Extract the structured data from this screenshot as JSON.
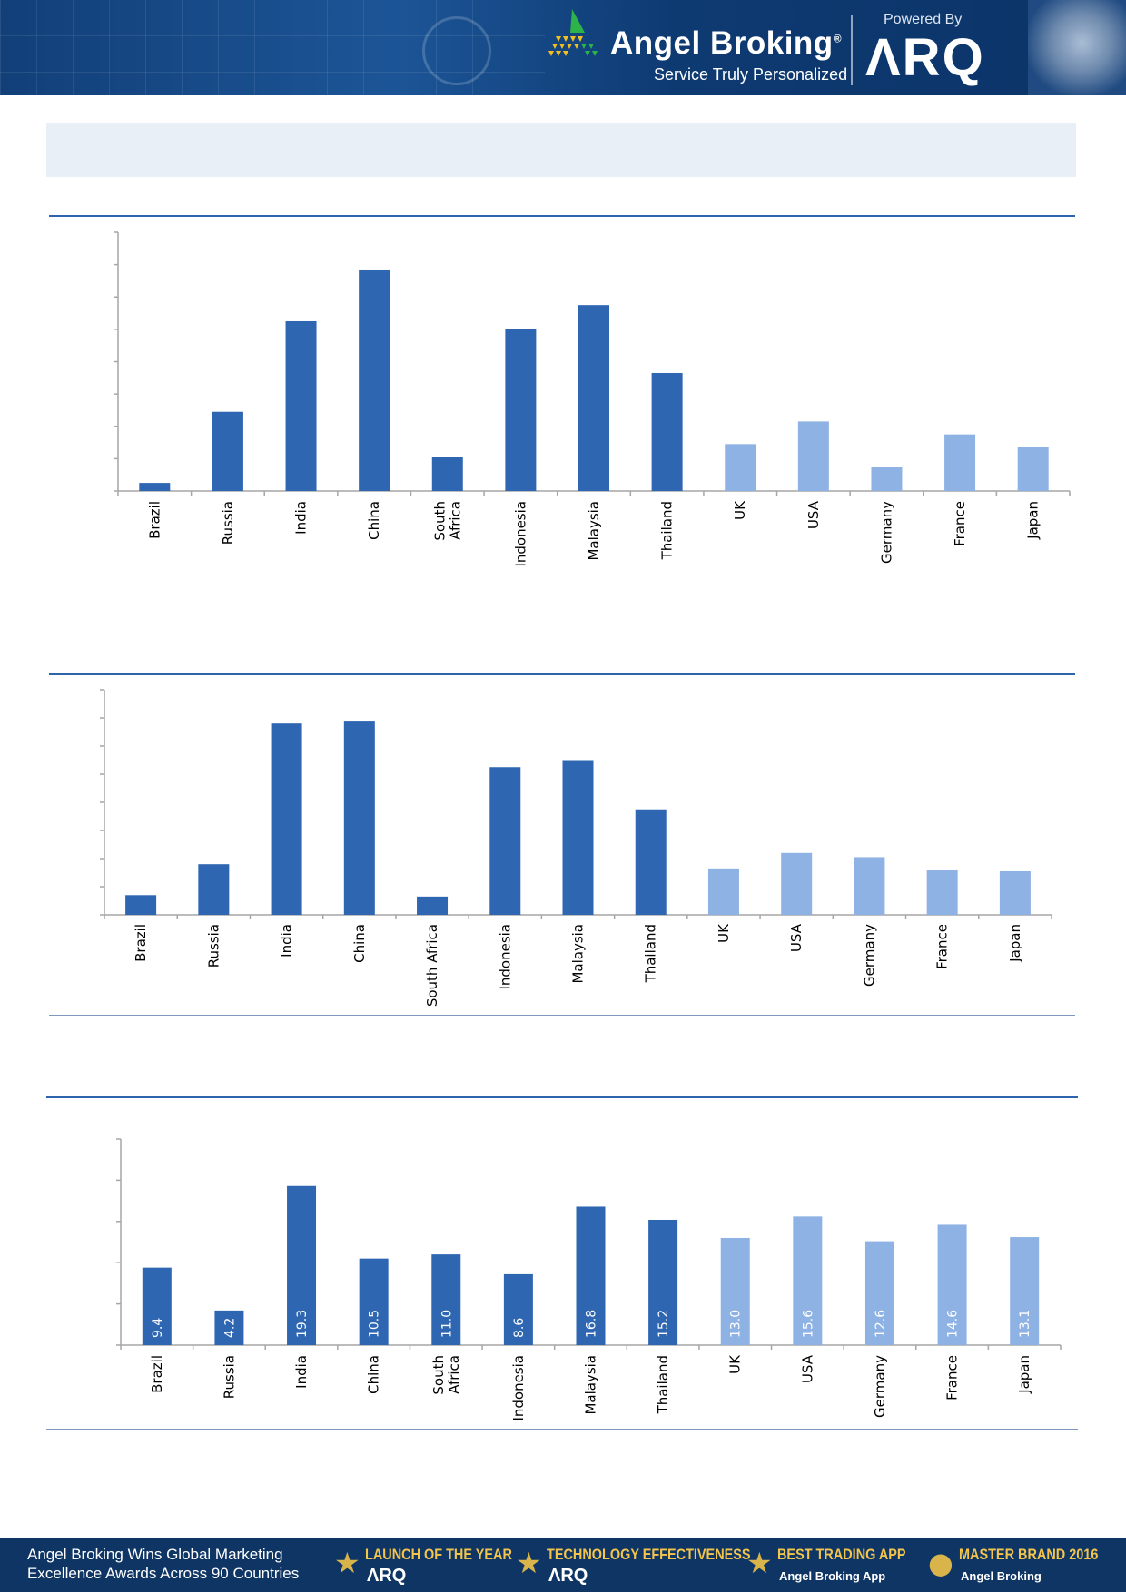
{
  "header": {
    "brand_name": "Angel Broking",
    "registered_mark": "®",
    "tagline": "Service Truly Personalized",
    "powered_by": "Powered By",
    "arq_logo": "ΛRQ"
  },
  "footer": {
    "text_line1": "Angel Broking Wins Global Marketing",
    "text_line2": "Excellence Awards Across 90 Countries",
    "awards": [
      {
        "title": "LAUNCH OF THE YEAR",
        "subtitle": "ΛRQ"
      },
      {
        "title": "TECHNOLOGY EFFECTIVENESS",
        "subtitle": "ΛRQ"
      },
      {
        "title": "BEST TRADING APP",
        "subtitle": "Angel Broking App"
      },
      {
        "title": "MASTER BRAND 2016",
        "subtitle": "Angel Broking"
      }
    ]
  },
  "colors": {
    "emerging_bar": "#2e66b2",
    "developed_bar": "#8db2e3",
    "header_bg": "#123f78",
    "footer_bg": "#0e3564",
    "section_rule": "#2e64ae"
  },
  "chart_data": [
    {
      "type": "bar",
      "title": "",
      "categories": [
        "Brazil",
        "Russia",
        "India",
        "China",
        "South Africa",
        "Indonesia",
        "Malaysia",
        "Thailand",
        "UK",
        "USA",
        "Germany",
        "France",
        "Japan"
      ],
      "values": [
        0.5,
        4.9,
        10.5,
        13.7,
        2.1,
        10.0,
        11.5,
        7.3,
        2.9,
        4.3,
        1.5,
        3.5,
        2.7
      ],
      "ylim": [
        0,
        16
      ],
      "grid": false,
      "legend": "none",
      "bar_groups": [
        "emerging",
        "emerging",
        "emerging",
        "emerging",
        "emerging",
        "emerging",
        "emerging",
        "emerging",
        "developed",
        "developed",
        "developed",
        "developed",
        "developed"
      ]
    },
    {
      "type": "bar",
      "title": "",
      "categories": [
        "Brazil",
        "Russia",
        "India",
        "China",
        "South Africa",
        "Indonesia",
        "Malaysia",
        "Thailand",
        "UK",
        "USA",
        "Germany",
        "France",
        "Japan"
      ],
      "values": [
        0.7,
        1.8,
        6.8,
        6.9,
        0.65,
        5.25,
        5.5,
        3.75,
        1.65,
        2.2,
        2.05,
        1.6,
        1.55
      ],
      "ylim": [
        0,
        8
      ],
      "grid": false,
      "legend": "none",
      "bar_groups": [
        "emerging",
        "emerging",
        "emerging",
        "emerging",
        "emerging",
        "emerging",
        "emerging",
        "emerging",
        "developed",
        "developed",
        "developed",
        "developed",
        "developed"
      ]
    },
    {
      "type": "bar",
      "title": "",
      "categories": [
        "Brazil",
        "Russia",
        "India",
        "China",
        "South Africa",
        "Indonesia",
        "Malaysia",
        "Thailand",
        "UK",
        "USA",
        "Germany",
        "France",
        "Japan"
      ],
      "values": [
        9.4,
        4.2,
        19.3,
        10.5,
        11.0,
        8.6,
        16.8,
        15.2,
        13.0,
        15.6,
        12.6,
        14.6,
        13.1
      ],
      "data_labels": [
        "9.4",
        "4.2",
        "19.3",
        "10.5",
        "11.0",
        "8.6",
        "16.8",
        "15.2",
        "13.0",
        "15.6",
        "12.6",
        "14.6",
        "13.1"
      ],
      "ylim": [
        0,
        25
      ],
      "grid": false,
      "legend": "none",
      "bar_groups": [
        "emerging",
        "emerging",
        "emerging",
        "emerging",
        "emerging",
        "emerging",
        "emerging",
        "emerging",
        "developed",
        "developed",
        "developed",
        "developed",
        "developed"
      ]
    }
  ]
}
